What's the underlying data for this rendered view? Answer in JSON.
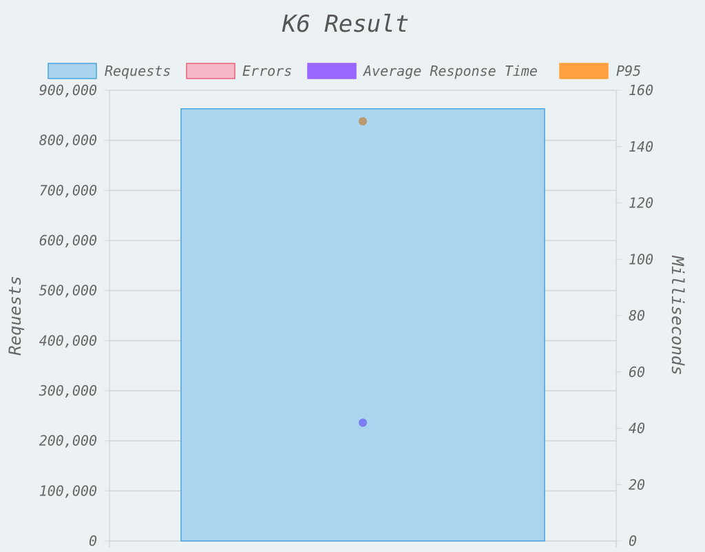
{
  "chart_data": {
    "type": "bar",
    "title": "K6 Result",
    "categories": [
      ""
    ],
    "legend_position": "top",
    "grid": true,
    "legend": [
      {
        "name": "Requests",
        "fill": "#a8d3ee",
        "stroke": "#4aa3df"
      },
      {
        "name": "Errors",
        "fill": "#f5b8c6",
        "stroke": "#e8607c"
      },
      {
        "name": "Average Response Time",
        "fill": "#9966ff",
        "stroke": "#9966ff"
      },
      {
        "name": "P95",
        "fill": "#ff9f40",
        "stroke": "#ff9f40"
      }
    ],
    "series": [
      {
        "name": "Requests",
        "type": "bar",
        "axis": "left",
        "values": [
          863000
        ],
        "color": "#a8d3ee"
      },
      {
        "name": "Errors",
        "type": "bar",
        "axis": "left",
        "values": [
          0
        ],
        "color": "#f5b8c6"
      },
      {
        "name": "Average Response Time",
        "type": "point",
        "axis": "right",
        "values": [
          42
        ],
        "color": "#7a7ef2"
      },
      {
        "name": "P95",
        "type": "point",
        "axis": "right",
        "values": [
          149
        ],
        "color": "#b89a70"
      }
    ],
    "y_left": {
      "label": "Requests",
      "ylim": [
        0,
        900000
      ],
      "ticks": [
        "0",
        "100,000",
        "200,000",
        "300,000",
        "400,000",
        "500,000",
        "600,000",
        "700,000",
        "800,000",
        "900,000"
      ]
    },
    "y_right": {
      "label": "Milliseconds",
      "ylim": [
        0,
        160
      ],
      "ticks": [
        "0",
        "20",
        "40",
        "60",
        "80",
        "100",
        "120",
        "140",
        "160"
      ]
    }
  }
}
